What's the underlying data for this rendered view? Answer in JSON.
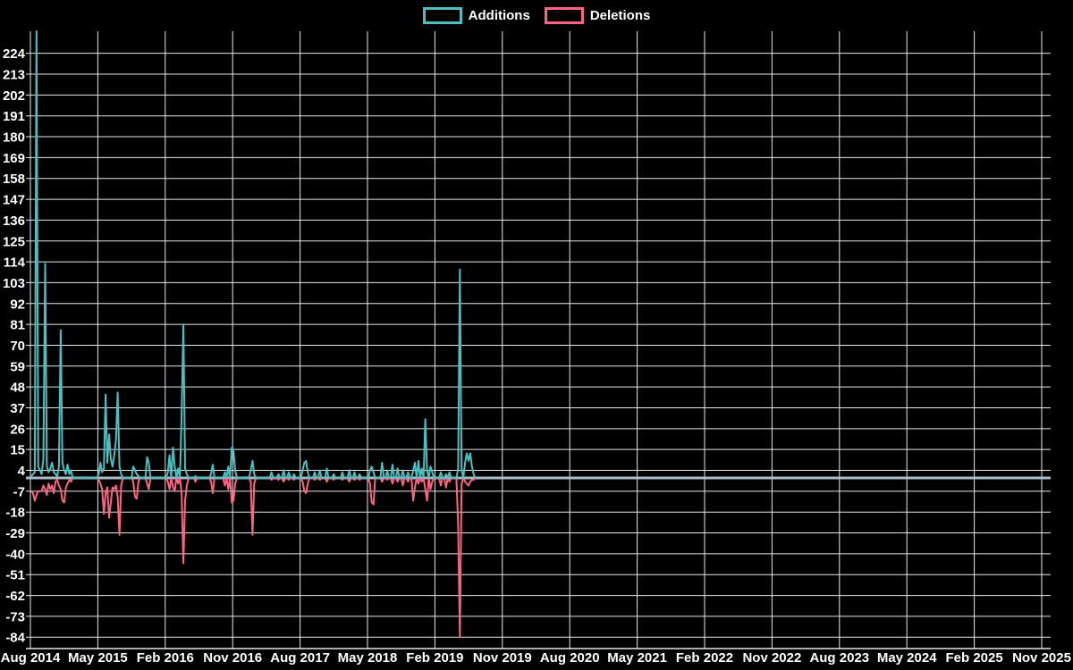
{
  "page": {
    "background": "#000000",
    "text_color": "#ffffff",
    "gridline_color": "#e8e8e8",
    "zero_line_color": "#a9bdc8"
  },
  "legend": {
    "items": [
      {
        "label": "Additions",
        "color": "#4BC0C0"
      },
      {
        "label": "Deletions",
        "color": "#FF6384"
      }
    ]
  },
  "chart_data": {
    "type": "line",
    "title": "",
    "legend_position": "top",
    "grid": true,
    "xlabel": "",
    "ylabel": "",
    "x_tick_labels": [
      "Aug 2014",
      "May 2015",
      "Feb 2016",
      "Nov 2016",
      "Aug 2017",
      "May 2018",
      "Feb 2019",
      "Nov 2019",
      "Aug 2020",
      "May 2021",
      "Feb 2022",
      "Nov 2022",
      "Aug 2023",
      "May 2024",
      "Feb 2025",
      "Nov 2025"
    ],
    "y_tick_labels": [
      224,
      213,
      202,
      191,
      180,
      169,
      158,
      147,
      136,
      125,
      114,
      103,
      92,
      81,
      70,
      59,
      48,
      37,
      26,
      15,
      4,
      -7,
      -18,
      -29,
      -40,
      -51,
      -62,
      -73,
      -84
    ],
    "ylim": [
      -90,
      235
    ],
    "x_unit": "week",
    "weeks_total": 258,
    "series": [
      {
        "name": "Additions",
        "color": "#4BC0C0",
        "values_sparse": {
          "0": 1,
          "1": 2,
          "2": 3,
          "3": 240,
          "4": 6,
          "5": 4,
          "6": 2,
          "7": 10,
          "8": 113,
          "9": 6,
          "10": 3,
          "11": 5,
          "12": 8,
          "13": 3,
          "14": 2,
          "15": 1,
          "16": 6,
          "17": 78,
          "18": 8,
          "19": 4,
          "20": 2,
          "21": 7,
          "22": 2,
          "23": 4,
          "39": 2,
          "40": 8,
          "41": 3,
          "42": 5,
          "43": 44,
          "44": 8,
          "45": 23,
          "46": 10,
          "47": 6,
          "48": 12,
          "49": 20,
          "50": 45,
          "51": 6,
          "52": 2,
          "59": 6,
          "60": 4,
          "61": 2,
          "62": 1,
          "67": 11,
          "68": 8,
          "79": 3,
          "80": 12,
          "82": 16,
          "83": 6,
          "85": 5,
          "87": 33,
          "88": 81,
          "89": 5,
          "90": 2,
          "95": 1,
          "104": 2,
          "105": 7,
          "112": 3,
          "114": 6,
          "116": 16,
          "117": 14,
          "118": 4,
          "127": 4,
          "128": 9,
          "129": 2,
          "139": 3,
          "143": 2,
          "146": 4,
          "149": 3,
          "152": 2,
          "157": 4,
          "158": 8,
          "159": 9,
          "160": 3,
          "164": 3,
          "167": 4,
          "171": 5,
          "175": 2,
          "180": 3,
          "184": 4,
          "187": 3,
          "190": 2,
          "196": 4,
          "197": 6,
          "198": 3,
          "203": 8,
          "206": 4,
          "209": 7,
          "212": 5,
          "215": 4,
          "218": 3,
          "221": 4,
          "222": 8,
          "224": 9,
          "226": 5,
          "228": 31,
          "229": 4,
          "231": 6,
          "232": 3,
          "237": 3,
          "240": 2,
          "242": 3,
          "247": 5,
          "248": 110,
          "249": 4,
          "251": 8,
          "252": 13,
          "253": 9,
          "254": 13,
          "255": 6,
          "256": 2
        }
      },
      {
        "name": "Deletions",
        "color": "#FF6384",
        "values_sparse": {
          "0": -7,
          "1": -8,
          "2": -12,
          "3": -9,
          "4": -7,
          "5": -7,
          "6": -7,
          "7": -4,
          "8": -6,
          "9": -9,
          "10": -3,
          "11": -6,
          "12": -4,
          "13": -8,
          "14": -2,
          "15": -1,
          "16": -4,
          "17": -6,
          "18": -12,
          "19": -13,
          "20": -5,
          "21": -3,
          "22": -1,
          "23": -2,
          "39": -1,
          "40": -3,
          "41": -6,
          "42": -19,
          "43": -8,
          "44": -5,
          "45": -21,
          "46": -13,
          "47": -5,
          "48": -6,
          "49": -4,
          "50": -10,
          "51": -30,
          "52": -4,
          "59": -2,
          "60": -10,
          "61": -11,
          "62": -2,
          "67": -3,
          "68": -6,
          "79": -2,
          "80": -6,
          "82": -5,
          "83": -7,
          "85": -3,
          "87": -8,
          "88": -45,
          "89": -12,
          "90": -4,
          "95": -2,
          "104": -2,
          "105": -8,
          "112": -4,
          "114": -6,
          "116": -13,
          "117": -12,
          "118": -3,
          "127": -2,
          "128": -30,
          "129": -3,
          "139": -1,
          "143": -1,
          "146": -2,
          "149": -1,
          "152": -1,
          "157": -2,
          "158": -7,
          "159": -8,
          "160": -3,
          "164": -1,
          "167": -1,
          "171": -2,
          "175": -1,
          "180": -1,
          "184": -2,
          "187": -1,
          "190": -1,
          "196": -3,
          "197": -13,
          "198": -14,
          "203": -2,
          "206": -1,
          "209": -3,
          "212": -2,
          "215": -4,
          "218": -2,
          "221": -12,
          "222": -5,
          "224": -3,
          "226": -2,
          "228": -6,
          "229": -12,
          "231": -6,
          "232": -2,
          "237": -4,
          "240": -5,
          "242": -2,
          "247": -25,
          "248": -84,
          "249": -3,
          "251": -2,
          "252": -3,
          "253": -4,
          "254": -2,
          "255": -1,
          "256": -1
        }
      }
    ]
  }
}
